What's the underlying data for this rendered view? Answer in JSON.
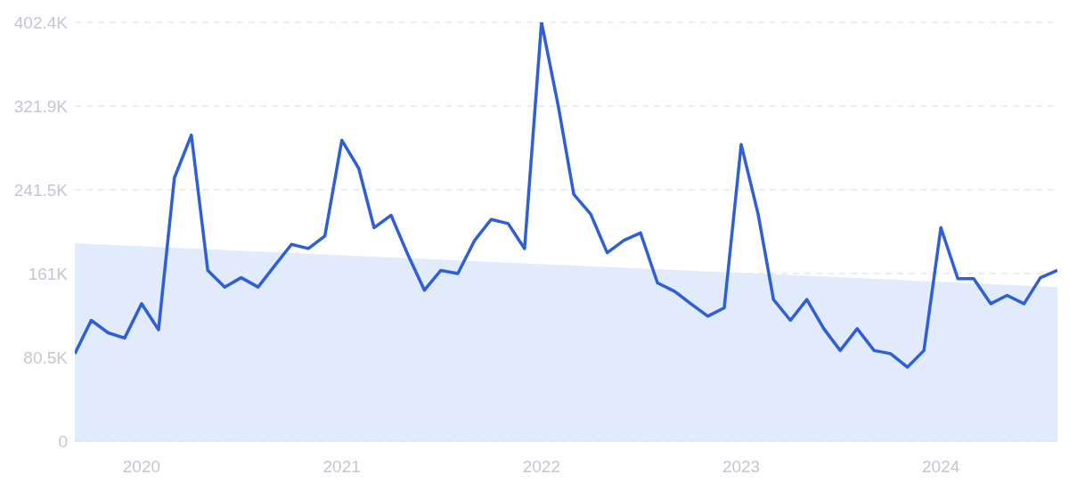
{
  "chart_data": {
    "type": "line",
    "x": [
      "2019-09",
      "2019-10",
      "2019-11",
      "2019-12",
      "2020-01",
      "2020-02",
      "2020-03",
      "2020-04",
      "2020-05",
      "2020-06",
      "2020-07",
      "2020-08",
      "2020-09",
      "2020-10",
      "2020-11",
      "2020-12",
      "2021-01",
      "2021-02",
      "2021-03",
      "2021-04",
      "2021-05",
      "2021-06",
      "2021-07",
      "2021-08",
      "2021-09",
      "2021-10",
      "2021-11",
      "2021-12",
      "2022-01",
      "2022-02",
      "2022-03",
      "2022-04",
      "2022-05",
      "2022-06",
      "2022-07",
      "2022-08",
      "2022-09",
      "2022-10",
      "2022-11",
      "2022-12",
      "2023-01",
      "2023-02",
      "2023-03",
      "2023-04",
      "2023-05",
      "2023-06",
      "2023-07",
      "2023-08",
      "2023-09",
      "2023-10",
      "2023-11",
      "2023-12",
      "2024-01",
      "2024-02",
      "2024-03",
      "2024-04",
      "2024-05",
      "2024-06",
      "2024-07",
      "2024-08"
    ],
    "series": [
      {
        "color": "#2f5fd6",
        "values": [
          84,
          116,
          104,
          99,
          132,
          107,
          253,
          294,
          164,
          148,
          157,
          148,
          169,
          189,
          185,
          197,
          289,
          262,
          205,
          217,
          180,
          145,
          164,
          161,
          193,
          213,
          209,
          185,
          402.4,
          321,
          237,
          218,
          181,
          193,
          200,
          152,
          144,
          132,
          120,
          128,
          285,
          218,
          136,
          116,
          136,
          108,
          87,
          108,
          87,
          84,
          71,
          87,
          205,
          156,
          156,
          132,
          140,
          132,
          157,
          164
        ]
      },
      {
        "type": "area",
        "color": "#e1ebfb",
        "x": [
          "2019-09",
          "2024-08"
        ],
        "values": [
          190,
          148
        ]
      }
    ],
    "xlim": [
      "2019-09",
      "2024-08"
    ],
    "xticks": [
      "2020",
      "2021",
      "2022",
      "2023",
      "2024"
    ],
    "ylim": [
      0,
      402.4
    ],
    "yticks": [
      0,
      {
        "value": 80.5,
        "label": "80.5K"
      },
      {
        "value": 161,
        "label": "161K"
      },
      {
        "value": 241.5,
        "label": "241.5K"
      },
      {
        "value": 321.9,
        "label": "321.9K"
      },
      {
        "value": 402.4,
        "label": "402.4K"
      }
    ],
    "grid": "y",
    "legend": false,
    "marker": "none",
    "line_style": "solid"
  }
}
